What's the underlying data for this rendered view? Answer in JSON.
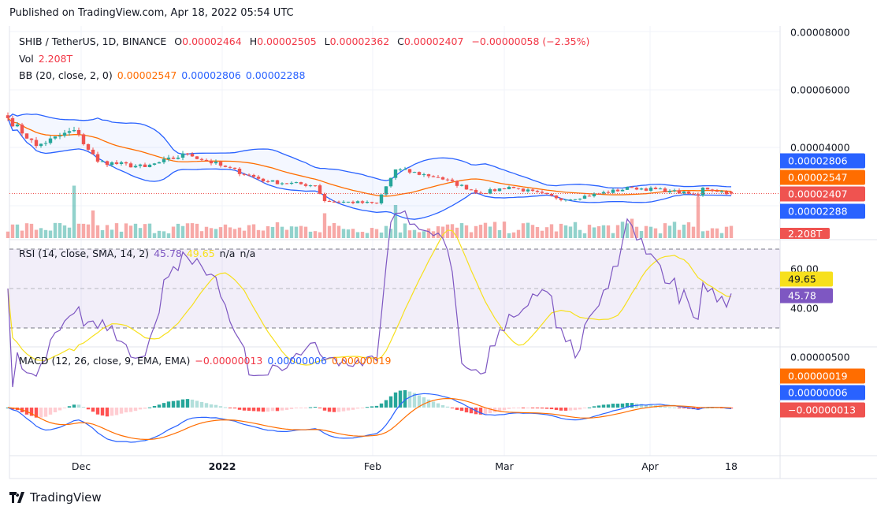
{
  "header": {
    "published": "Published on TradingView.com, Apr 18, 2022 05:54 UTC"
  },
  "legend": {
    "symbol": "SHIB / TetherUS, 1D, BINANCE",
    "o_label": "O",
    "o": "0.00002464",
    "h_label": "H",
    "h": "0.00002505",
    "l_label": "L",
    "l": "0.00002362",
    "c_label": "C",
    "c": "0.00002407",
    "change": "−0.00000058 (−2.35%)",
    "vol_label": "Vol",
    "vol": "2.208T",
    "bb_label": "BB (20, close, 2, 0)",
    "bb_basis": "0.00002547",
    "bb_upper": "0.00002806",
    "bb_lower": "0.00002288",
    "rsi_label": "RSI (14, close, SMA, 14, 2)",
    "rsi": "45.78",
    "rsi_ma": "49.65",
    "rsi_na1": "n/a",
    "rsi_na2": "n/a",
    "macd_label": "MACD (12, 26, close, 9, EMA, EMA)",
    "macd_hist": "−0.00000013",
    "macd": "0.00000006",
    "macd_signal": "0.00000019"
  },
  "price_axis": {
    "ticks": [
      "0.00008000",
      "0.00006000",
      "0.00004000"
    ],
    "badges": {
      "upper": "0.00002806",
      "basis": "0.00002547",
      "last": "0.00002407",
      "lower": "0.00002288",
      "vol": "2.208T"
    }
  },
  "rsi_axis": {
    "ticks": [
      "60.00",
      "40.00"
    ],
    "badges": {
      "ma": "49.65",
      "rsi": "45.78"
    }
  },
  "macd_axis": {
    "ticks": [
      "0.00000500"
    ],
    "badges": {
      "signal": "0.00000019",
      "macd": "0.00000006",
      "hist": "−0.00000013"
    }
  },
  "time_axis": [
    {
      "label": "Dec",
      "bold": false
    },
    {
      "label": "2022",
      "bold": true
    },
    {
      "label": "Feb",
      "bold": false
    },
    {
      "label": "Mar",
      "bold": false
    },
    {
      "label": "Apr",
      "bold": false
    },
    {
      "label": "18",
      "bold": false
    }
  ],
  "footer": {
    "brand": "TradingView"
  },
  "colors": {
    "up": "#26a69a",
    "down": "#ef5350",
    "bb_band": "#2962ff",
    "bb_basis": "#ff6d00",
    "rsi": "#7e57c2",
    "rsi_ma": "#f7e01c",
    "macd": "#2962ff",
    "signal": "#ff6d00"
  },
  "chart_data": {
    "type": "candlestick",
    "title": "SHIB / TetherUS, 1D, BINANCE",
    "ylim": [
      1e-05,
      8e-05
    ],
    "x_range": [
      "2021-11-16",
      "2022-04-18"
    ],
    "close_keypoints": [
      [
        "2021-11-16",
        5.01e-05
      ],
      [
        "2021-11-22",
        4.05e-05
      ],
      [
        "2021-11-30",
        4.6e-05
      ],
      [
        "2021-12-05",
        3.51e-05
      ],
      [
        "2021-12-15",
        3.32e-05
      ],
      [
        "2021-12-24",
        3.78e-05
      ],
      [
        "2021-12-31",
        3.37e-05
      ],
      [
        "2022-01-10",
        2.82e-05
      ],
      [
        "2022-01-20",
        2.69e-05
      ],
      [
        "2022-01-22",
        2.15e-05
      ],
      [
        "2022-02-02",
        2.07e-05
      ],
      [
        "2022-02-06",
        3.24e-05
      ],
      [
        "2022-02-15",
        2.97e-05
      ],
      [
        "2022-02-24",
        2.42e-05
      ],
      [
        "2022-03-02",
        2.64e-05
      ],
      [
        "2022-03-14",
        2.2e-05
      ],
      [
        "2022-03-28",
        2.61e-05
      ],
      [
        "2022-04-05",
        2.5e-05
      ],
      [
        "2022-04-11",
        2.34e-05
      ],
      [
        "2022-04-12",
        2.61e-05
      ],
      [
        "2022-04-18",
        2.407e-05
      ]
    ],
    "volume_spikes_T": [
      [
        "2021-11-30",
        9.5
      ],
      [
        "2021-12-04",
        5.0
      ],
      [
        "2022-01-22",
        4.5
      ],
      [
        "2022-02-06",
        6.0
      ],
      [
        "2022-03-28",
        3.5
      ],
      [
        "2022-04-11",
        7.5
      ]
    ],
    "last": {
      "open": 2.464e-05,
      "high": 2.505e-05,
      "low": 2.362e-05,
      "close": 2.407e-05,
      "volume": "2.208T"
    },
    "bb": {
      "basis": 2.547e-05,
      "upper": 2.806e-05,
      "lower": 2.288e-05
    },
    "rsi": {
      "value": 45.78,
      "ma": 49.65,
      "bands": [
        70,
        50,
        30
      ]
    },
    "macd": {
      "macd": 6e-08,
      "signal": 1.9e-07,
      "hist": -1.3e-07
    }
  }
}
